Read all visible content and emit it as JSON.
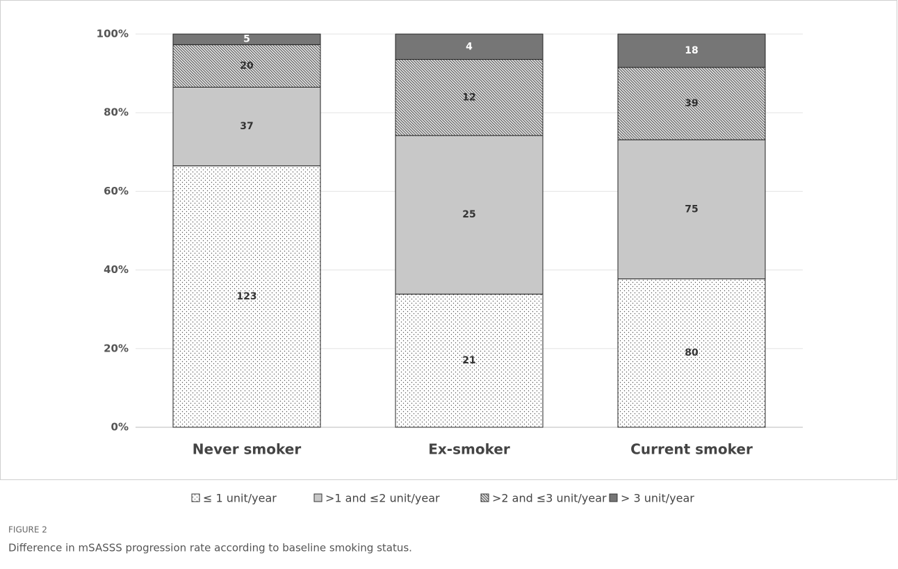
{
  "chart_data": {
    "type": "bar",
    "stacked": "percent",
    "categories": [
      "Never smoker",
      "Ex-smoker",
      "Current smoker"
    ],
    "series": [
      {
        "name": "≤ 1 unit/year",
        "color": "#ffffff",
        "pattern": "dots",
        "label_color": "#333333",
        "values": [
          123,
          21,
          80
        ]
      },
      {
        "name": ">1 and ≤2 unit/year",
        "color": "#c8c8c8",
        "pattern": "solid",
        "label_color": "#333333",
        "values": [
          37,
          25,
          75
        ]
      },
      {
        "name": ">2 and ≤3 unit/year",
        "color": "#d9d9d9",
        "pattern": "hatch",
        "label_color": "#333333",
        "values": [
          20,
          12,
          39
        ]
      },
      {
        "name": "> 3 unit/year",
        "color": "#767676",
        "pattern": "solid",
        "label_color": "#ffffff",
        "values": [
          5,
          4,
          18
        ]
      }
    ],
    "ylim": [
      0,
      100
    ],
    "yticks": [
      {
        "value": 0,
        "label": "0%"
      },
      {
        "value": 20,
        "label": "20%"
      },
      {
        "value": 40,
        "label": "40%"
      },
      {
        "value": 60,
        "label": "60%"
      },
      {
        "value": 80,
        "label": "80%"
      },
      {
        "value": 100,
        "label": "100%"
      }
    ],
    "grid": true,
    "legend": "bottom",
    "figure_label": "FIGURE 2",
    "caption": "Difference in mSASSS progression rate according to baseline smoking status."
  }
}
